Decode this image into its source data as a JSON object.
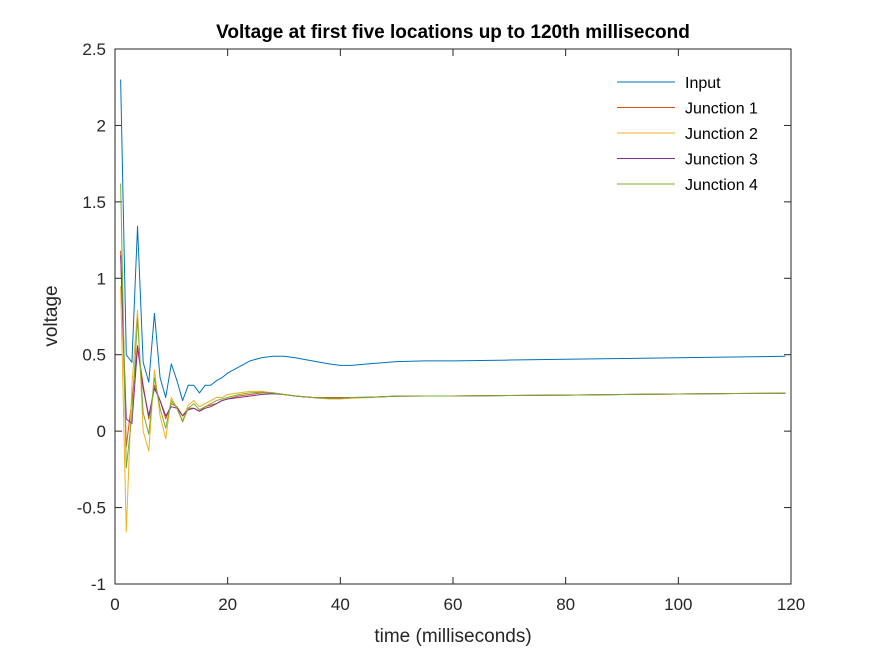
{
  "chart_data": {
    "type": "line",
    "title": "Voltage at first five locations up to 120th millisecond",
    "xlabel": "time (milliseconds)",
    "ylabel": "voltage",
    "xlim": [
      0,
      120
    ],
    "ylim": [
      -1,
      2.5
    ],
    "xticks": [
      0,
      20,
      40,
      60,
      80,
      100,
      120
    ],
    "yticks": [
      -1,
      -0.5,
      0,
      0.5,
      1,
      1.5,
      2,
      2.5
    ],
    "xtick_labels": [
      "0",
      "20",
      "40",
      "60",
      "80",
      "100",
      "120"
    ],
    "ytick_labels": [
      "-1",
      "-0.5",
      "0",
      "0.5",
      "1",
      "1.5",
      "2",
      "2.5"
    ],
    "grid": false,
    "legend_position": "top-right",
    "series": [
      {
        "name": "Input",
        "color": "#0072BD",
        "x": [
          1,
          2,
          3,
          4,
          5,
          6,
          7,
          8,
          9,
          10,
          11,
          12,
          13,
          14,
          15,
          16,
          17,
          18,
          19,
          20,
          22,
          24,
          26,
          28,
          30,
          32,
          35,
          38,
          40,
          42,
          45,
          50,
          55,
          60,
          70,
          80,
          90,
          100,
          110,
          119
        ],
        "y": [
          2.3,
          0.5,
          0.45,
          1.34,
          0.45,
          0.32,
          0.77,
          0.35,
          0.22,
          0.44,
          0.33,
          0.2,
          0.3,
          0.3,
          0.25,
          0.3,
          0.3,
          0.33,
          0.35,
          0.38,
          0.42,
          0.46,
          0.48,
          0.49,
          0.49,
          0.48,
          0.46,
          0.44,
          0.43,
          0.43,
          0.44,
          0.455,
          0.46,
          0.46,
          0.465,
          0.47,
          0.475,
          0.48,
          0.485,
          0.49
        ]
      },
      {
        "name": "Junction 1",
        "color": "#D95319",
        "x": [
          1,
          2,
          3,
          4,
          5,
          6,
          7,
          8,
          9,
          10,
          11,
          12,
          13,
          14,
          15,
          16,
          17,
          18,
          19,
          20,
          22,
          24,
          26,
          28,
          30,
          32,
          35,
          38,
          40,
          42,
          45,
          50,
          55,
          60,
          70,
          80,
          90,
          100,
          110,
          119
        ],
        "y": [
          1.18,
          -0.1,
          0.2,
          0.56,
          0.3,
          0.08,
          0.3,
          0.2,
          0.08,
          0.18,
          0.16,
          0.1,
          0.15,
          0.15,
          0.13,
          0.16,
          0.17,
          0.18,
          0.2,
          0.21,
          0.23,
          0.24,
          0.25,
          0.25,
          0.24,
          0.23,
          0.22,
          0.22,
          0.22,
          0.22,
          0.22,
          0.23,
          0.23,
          0.23,
          0.233,
          0.236,
          0.24,
          0.243,
          0.246,
          0.248
        ]
      },
      {
        "name": "Junction 2",
        "color": "#EDB120",
        "x": [
          1,
          2,
          3,
          4,
          5,
          6,
          7,
          8,
          9,
          10,
          11,
          12,
          13,
          14,
          15,
          16,
          17,
          18,
          19,
          20,
          22,
          24,
          26,
          28,
          30,
          32,
          35,
          38,
          40,
          42,
          45,
          50,
          55,
          60,
          70,
          80,
          90,
          100,
          110,
          119
        ],
        "y": [
          0.95,
          -0.66,
          0.3,
          0.79,
          0.0,
          -0.13,
          0.4,
          0.1,
          -0.05,
          0.22,
          0.15,
          0.07,
          0.17,
          0.2,
          0.16,
          0.18,
          0.2,
          0.22,
          0.22,
          0.24,
          0.25,
          0.26,
          0.26,
          0.25,
          0.24,
          0.23,
          0.22,
          0.21,
          0.21,
          0.215,
          0.22,
          0.23,
          0.23,
          0.23,
          0.233,
          0.236,
          0.24,
          0.243,
          0.246,
          0.248
        ]
      },
      {
        "name": "Junction 3",
        "color": "#7E2F8E",
        "x": [
          1,
          2,
          3,
          4,
          5,
          6,
          7,
          8,
          9,
          10,
          11,
          12,
          13,
          14,
          15,
          16,
          17,
          18,
          19,
          20,
          22,
          24,
          26,
          28,
          30,
          32,
          35,
          38,
          40,
          42,
          45,
          50,
          55,
          60,
          70,
          80,
          90,
          100,
          110,
          119
        ],
        "y": [
          1.15,
          0.08,
          0.05,
          0.55,
          0.28,
          0.1,
          0.28,
          0.2,
          0.1,
          0.16,
          0.15,
          0.1,
          0.14,
          0.15,
          0.13,
          0.15,
          0.16,
          0.18,
          0.2,
          0.21,
          0.22,
          0.23,
          0.24,
          0.245,
          0.24,
          0.23,
          0.22,
          0.215,
          0.215,
          0.22,
          0.222,
          0.228,
          0.23,
          0.23,
          0.233,
          0.236,
          0.24,
          0.243,
          0.246,
          0.248
        ]
      },
      {
        "name": "Junction 4",
        "color": "#77AC30",
        "x": [
          1,
          2,
          3,
          4,
          5,
          6,
          7,
          8,
          9,
          10,
          11,
          12,
          13,
          14,
          15,
          16,
          17,
          18,
          19,
          20,
          22,
          24,
          26,
          28,
          30,
          32,
          35,
          38,
          40,
          42,
          45,
          50,
          55,
          60,
          70,
          80,
          90,
          100,
          110,
          119
        ],
        "y": [
          1.62,
          -0.24,
          0.1,
          0.74,
          0.12,
          -0.02,
          0.35,
          0.15,
          0.02,
          0.2,
          0.15,
          0.06,
          0.15,
          0.18,
          0.14,
          0.16,
          0.18,
          0.2,
          0.21,
          0.22,
          0.24,
          0.25,
          0.255,
          0.25,
          0.24,
          0.23,
          0.22,
          0.215,
          0.215,
          0.22,
          0.222,
          0.228,
          0.23,
          0.23,
          0.233,
          0.236,
          0.24,
          0.243,
          0.246,
          0.248
        ]
      }
    ]
  }
}
